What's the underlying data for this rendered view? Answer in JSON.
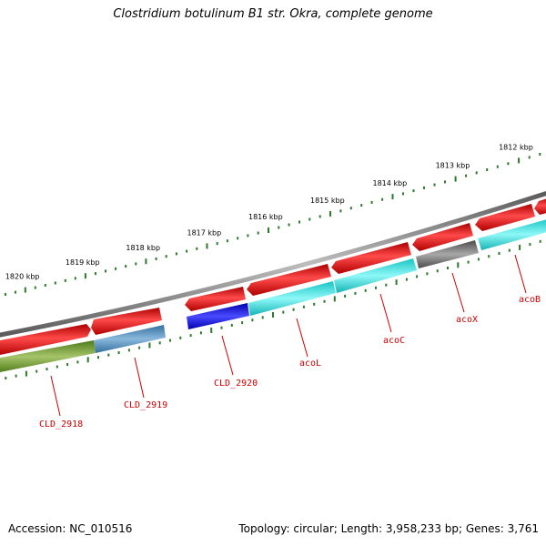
{
  "title": "Clostridium botulinum B1 str. Okra, complete genome",
  "footer": {
    "accession": "Accession: NC_010516",
    "topology": "Topology: circular; Length: 3,958,233 bp; Genes: 3,761"
  },
  "colors": {
    "backbone": "#8a8a8a",
    "cds_strand": "#ee1111",
    "scale_ticks": "#2a7a2a",
    "label": "#cc0000"
  },
  "scale_labels": [
    "1820 kbp",
    "1819 kbp",
    "1818 kbp",
    "1817 kbp",
    "1816 kbp",
    "1815 kbp",
    "1814 kbp",
    "1813 kbp",
    "1812 kbp"
  ],
  "genes": [
    {
      "label": "CLD_2918",
      "color": "#6f9a2a"
    },
    {
      "label": "CLD_2919",
      "color": "#4f88b8"
    },
    {
      "label": "CLD_2920",
      "color": "#1010ee"
    },
    {
      "label": "acoL",
      "color": "#22e0e0"
    },
    {
      "label": "acoC",
      "color": "#22e0e0"
    },
    {
      "label": "acoX",
      "color": "#707070"
    },
    {
      "label": "acoB",
      "color": "#22e0e0"
    }
  ]
}
